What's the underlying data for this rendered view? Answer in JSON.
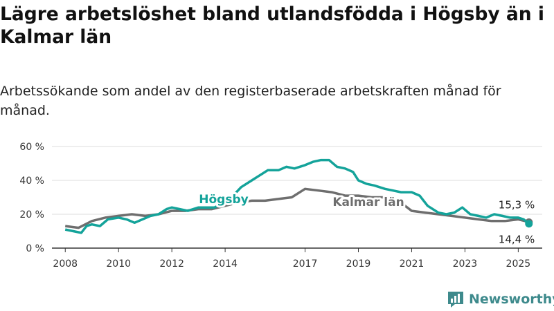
{
  "title": "Lägre arbetslöshet bland utlandsfödda i Högsby än i Kalmar län",
  "subtitle": "Arbetssökande som andel av den registerbaserade arbetskraften månad för månad.",
  "brand": {
    "name": "Newsworthy",
    "color": "#3e8a8c",
    "icon": "bar-chart-logo-icon"
  },
  "chart_data": {
    "type": "line",
    "xlim": [
      2007.5,
      2025.9
    ],
    "ylim": [
      0,
      60
    ],
    "x_ticks": [
      2008,
      2010,
      2012,
      2014,
      2017,
      2019,
      2021,
      2023,
      2025
    ],
    "y_ticks": [
      {
        "value": 0,
        "label": "0 %"
      },
      {
        "value": 20,
        "label": "20 %"
      },
      {
        "value": 40,
        "label": "40 %"
      },
      {
        "value": 60,
        "label": "60 %"
      }
    ],
    "grid": "horizontal",
    "series": [
      {
        "name": "Kalmar län",
        "color": "#6e6e6e",
        "end_label": "15,3 %",
        "x": [
          2008.0,
          2008.5,
          2009.0,
          2009.5,
          2010.0,
          2010.5,
          2011.0,
          2011.5,
          2012.0,
          2012.5,
          2013.0,
          2013.5,
          2014.0,
          2014.5,
          2015.0,
          2015.5,
          2016.0,
          2016.5,
          2017.0,
          2017.5,
          2018.0,
          2018.5,
          2019.0,
          2019.5,
          2020.0,
          2020.5,
          2021.0,
          2021.5,
          2022.0,
          2022.5,
          2023.0,
          2023.5,
          2024.0,
          2024.5,
          2025.0,
          2025.25,
          2025.4
        ],
        "values": [
          13,
          12,
          16,
          18,
          19,
          20,
          19,
          20,
          22,
          22,
          23,
          23,
          25,
          27,
          28,
          28,
          29,
          30,
          35,
          34,
          33,
          31,
          31,
          30,
          30,
          28,
          22,
          21,
          20,
          19,
          18,
          17,
          16,
          16,
          17,
          16,
          15.3
        ]
      },
      {
        "name": "Högsby",
        "color": "#14a39a",
        "end_label": "14,4 %",
        "x": [
          2008.0,
          2008.3,
          2008.6,
          2008.8,
          2009.0,
          2009.3,
          2009.6,
          2010.0,
          2010.3,
          2010.6,
          2010.9,
          2011.2,
          2011.5,
          2011.8,
          2012.0,
          2012.3,
          2012.6,
          2013.0,
          2013.3,
          2013.6,
          2014.0,
          2014.3,
          2014.6,
          2015.0,
          2015.3,
          2015.6,
          2016.0,
          2016.3,
          2016.6,
          2017.0,
          2017.3,
          2017.6,
          2017.9,
          2018.2,
          2018.5,
          2018.8,
          2019.0,
          2019.3,
          2019.6,
          2020.0,
          2020.3,
          2020.6,
          2021.0,
          2021.3,
          2021.6,
          2022.0,
          2022.3,
          2022.6,
          2022.9,
          2023.2,
          2023.5,
          2023.8,
          2024.1,
          2024.4,
          2024.7,
          2025.0,
          2025.2,
          2025.4
        ],
        "values": [
          11,
          10,
          9,
          13,
          14,
          13,
          17,
          18,
          17,
          15,
          17,
          19,
          20,
          23,
          24,
          23,
          22,
          24,
          24,
          24,
          27,
          31,
          36,
          40,
          43,
          46,
          46,
          48,
          47,
          49,
          51,
          52,
          52,
          48,
          47,
          45,
          40,
          38,
          37,
          35,
          34,
          33,
          33,
          31,
          25,
          21,
          20,
          21,
          24,
          20,
          19,
          18,
          20,
          19,
          18,
          18,
          17,
          14.4
        ]
      }
    ],
    "inline_labels": [
      "Högsby",
      "Kalmar län"
    ]
  }
}
